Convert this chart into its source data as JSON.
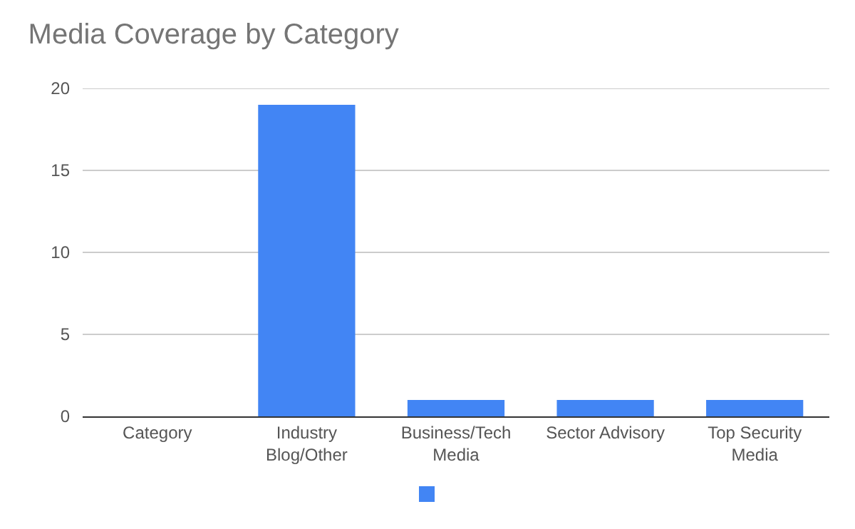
{
  "chart_data": {
    "type": "bar",
    "title": "Media Coverage by Category",
    "categories": [
      "Category",
      "Industry Blog/Other",
      "Business/Tech Media",
      "Sector Advisory",
      "Top Security Media"
    ],
    "series": [
      {
        "color": "#4285f4",
        "values": [
          null,
          19,
          1,
          1,
          1
        ]
      }
    ],
    "ylim": [
      0,
      20
    ],
    "yticks": [
      0,
      5,
      10,
      15,
      20
    ],
    "grid": "y"
  }
}
